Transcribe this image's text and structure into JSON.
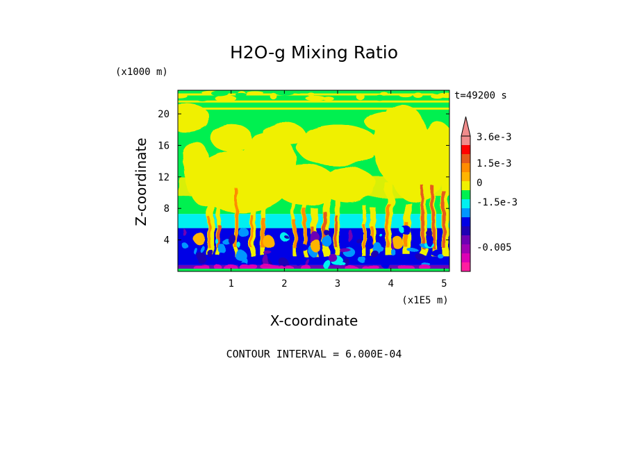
{
  "chart_data": {
    "type": "heatmap",
    "title": "H2O-g Mixing Ratio",
    "xlabel": "X-coordinate",
    "ylabel": "Z-coordinate",
    "x_unit": "(x1E5 m)",
    "y_unit": "(x1000 m)",
    "time_label": "t=49200 s",
    "footer": "CONTOUR INTERVAL = 6.000E-04",
    "x_ticks": [
      "1",
      "2",
      "3",
      "4",
      "5"
    ],
    "y_ticks": [
      "4",
      "8",
      "12",
      "16",
      "20"
    ],
    "xlim": [
      0,
      5.1
    ],
    "ylim": [
      0,
      23
    ],
    "colorbar": {
      "labels": [
        "3.6e-3",
        "1.5e-3",
        "0",
        "-1.5e-3",
        "-0.005"
      ],
      "colors": [
        "#f08c8c",
        "#ff0000",
        "#e55a1a",
        "#ff8c00",
        "#ffb400",
        "#f0f000",
        "#00f050",
        "#00f0f0",
        "#0096ff",
        "#0000e6",
        "#1e00b4",
        "#6e00b4",
        "#a000b4",
        "#dc00b4",
        "#ff1ea0"
      ],
      "extend": "max"
    },
    "layers": [
      {
        "z_range": [
          0,
          0.8
        ],
        "dominant": "purple-magenta"
      },
      {
        "z_range": [
          0.8,
          5.5
        ],
        "dominant": "blue"
      },
      {
        "z_range": [
          5.5,
          7.3
        ],
        "dominant": "cyan"
      },
      {
        "z_range": [
          7.3,
          21.5
        ],
        "dominant": "green-yellow"
      },
      {
        "z_range": [
          21.5,
          23
        ],
        "dominant": "yellow-green bands"
      }
    ]
  }
}
